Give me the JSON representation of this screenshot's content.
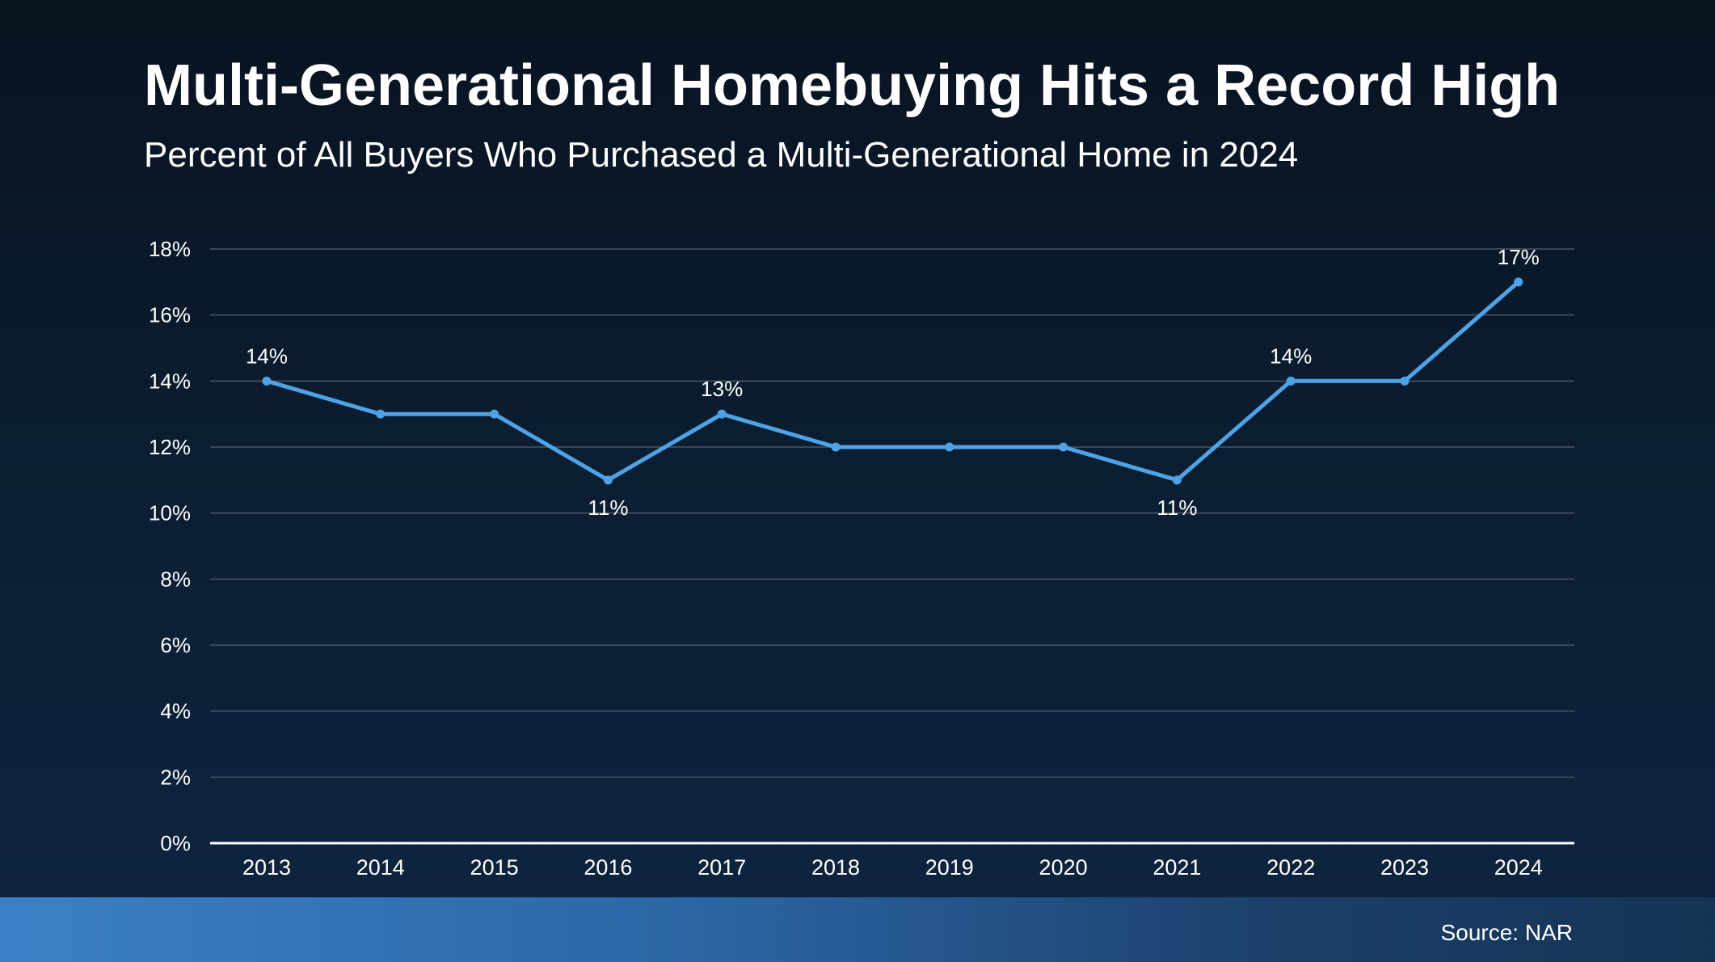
{
  "title": "Multi-Generational Homebuying Hits a Record High",
  "subtitle": "Percent of All Buyers Who Purchased a Multi-Generational Home in 2024",
  "source": "Source: NAR",
  "colors": {
    "line": "#4ea3e6",
    "grid": "#4a5666",
    "axis": "#ffffff",
    "text": "#ffffff"
  },
  "chart_data": {
    "type": "line",
    "title": "",
    "xlabel": "",
    "ylabel": "",
    "categories": [
      "2013",
      "2014",
      "2015",
      "2016",
      "2017",
      "2018",
      "2019",
      "2020",
      "2021",
      "2022",
      "2023",
      "2024"
    ],
    "series": [
      {
        "values": [
          14,
          13,
          13,
          11,
          13,
          12,
          12,
          12,
          11,
          14,
          14,
          17
        ]
      }
    ],
    "ylim": [
      0,
      18
    ],
    "yticks": [
      "0%",
      "2%",
      "4%",
      "6%",
      "8%",
      "10%",
      "12%",
      "14%",
      "16%",
      "18%"
    ],
    "data_labels": [
      {
        "index": 0,
        "text": "14%",
        "position": "above"
      },
      {
        "index": 3,
        "text": "11%",
        "position": "below"
      },
      {
        "index": 4,
        "text": "13%",
        "position": "above"
      },
      {
        "index": 8,
        "text": "11%",
        "position": "below"
      },
      {
        "index": 9,
        "text": "14%",
        "position": "above"
      },
      {
        "index": 11,
        "text": "17%",
        "position": "above"
      }
    ],
    "grid": true,
    "legend": "none"
  }
}
